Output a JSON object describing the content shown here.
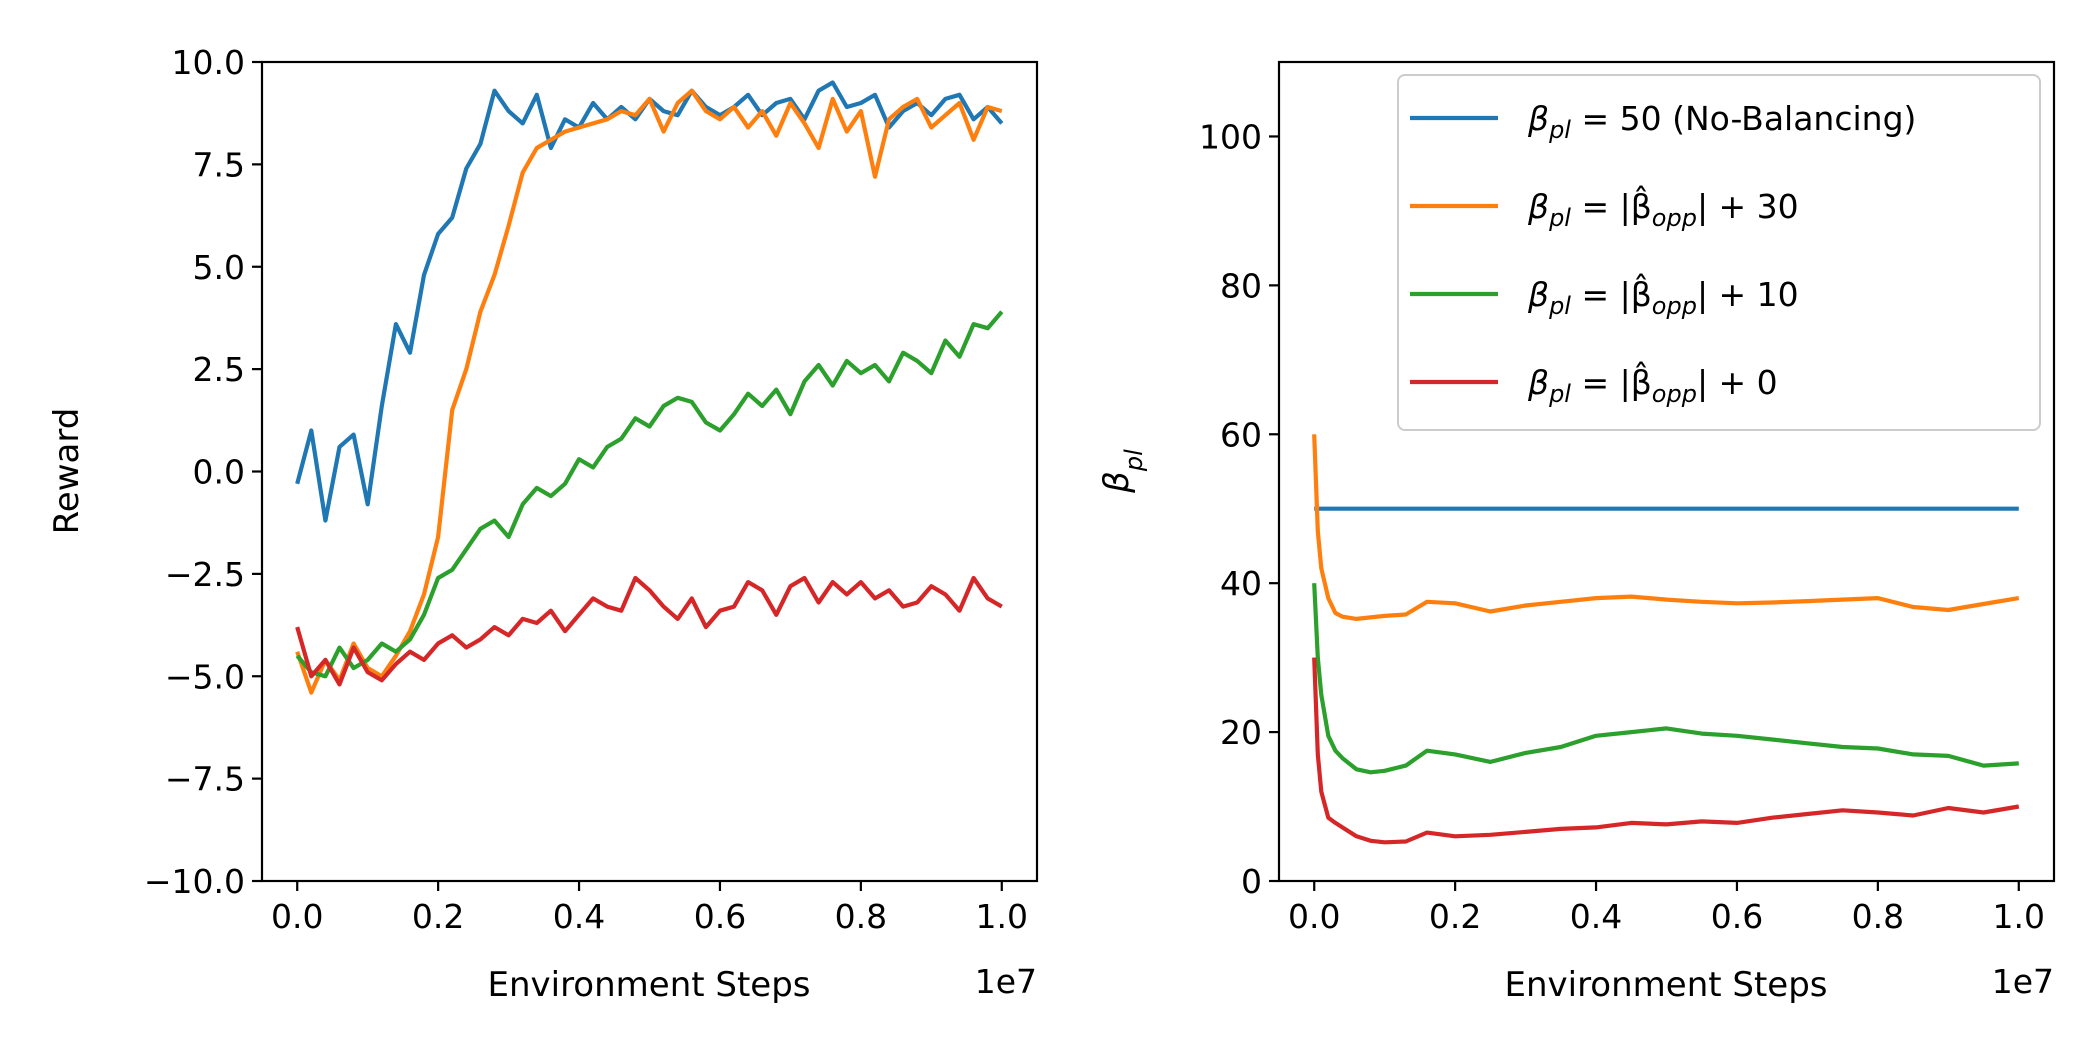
{
  "chart_data": [
    {
      "type": "line",
      "xlabel": "Environment Steps",
      "ylabel": "Reward",
      "x_offset_label": "1e7",
      "xlim": [
        -0.05,
        1.05
      ],
      "ylim": [
        -10.0,
        10.0
      ],
      "x_ticks": [
        0.0,
        0.2,
        0.4,
        0.6,
        0.8,
        1.0
      ],
      "x_tick_labels": [
        "0.0",
        "0.2",
        "0.4",
        "0.6",
        "0.8",
        "1.0"
      ],
      "y_ticks": [
        -10.0,
        -7.5,
        -5.0,
        -2.5,
        0.0,
        2.5,
        5.0,
        7.5,
        10.0
      ],
      "y_tick_labels": [
        "−10.0",
        "−7.5",
        "−5.0",
        "−2.5",
        "0.0",
        "2.5",
        "5.0",
        "7.5",
        "10.0"
      ],
      "x": [
        0.0,
        0.02,
        0.04,
        0.06,
        0.08,
        0.1,
        0.12,
        0.14,
        0.16,
        0.18,
        0.2,
        0.22,
        0.24,
        0.26,
        0.28,
        0.3,
        0.32,
        0.34,
        0.36,
        0.38,
        0.4,
        0.42,
        0.44,
        0.46,
        0.48,
        0.5,
        0.52,
        0.54,
        0.56,
        0.58,
        0.6,
        0.62,
        0.64,
        0.66,
        0.68,
        0.7,
        0.72,
        0.74,
        0.76,
        0.78,
        0.8,
        0.82,
        0.84,
        0.86,
        0.88,
        0.9,
        0.92,
        0.94,
        0.96,
        0.98,
        1.0
      ],
      "series": [
        {
          "name": "β_pl = 50 (No-Balancing)",
          "color": "#1f77b4",
          "values": [
            -0.3,
            1.0,
            -1.2,
            0.6,
            0.9,
            -0.8,
            1.6,
            3.6,
            2.9,
            4.8,
            5.8,
            6.2,
            7.4,
            8.0,
            9.3,
            8.8,
            8.5,
            9.2,
            7.9,
            8.6,
            8.4,
            9.0,
            8.6,
            8.9,
            8.6,
            9.1,
            8.8,
            8.7,
            9.3,
            8.9,
            8.7,
            8.9,
            9.2,
            8.7,
            9.0,
            9.1,
            8.6,
            9.3,
            9.5,
            8.9,
            9.0,
            9.2,
            8.4,
            8.8,
            9.0,
            8.7,
            9.1,
            9.2,
            8.6,
            8.9,
            8.5
          ]
        },
        {
          "name": "β_pl = |β̂_opp| + 30",
          "color": "#ff7f0e",
          "values": [
            -4.4,
            -5.4,
            -4.6,
            -5.1,
            -4.2,
            -4.8,
            -5.0,
            -4.5,
            -3.9,
            -3.0,
            -1.6,
            1.5,
            2.5,
            3.9,
            4.8,
            6.0,
            7.3,
            7.9,
            8.1,
            8.3,
            8.4,
            8.5,
            8.6,
            8.8,
            8.7,
            9.1,
            8.3,
            9.0,
            9.3,
            8.8,
            8.6,
            8.9,
            8.4,
            8.8,
            8.2,
            9.0,
            8.5,
            7.9,
            9.1,
            8.3,
            8.8,
            7.2,
            8.6,
            8.9,
            9.1,
            8.4,
            8.7,
            9.0,
            8.1,
            8.9,
            8.8
          ]
        },
        {
          "name": "β_pl = |β̂_opp| + 10",
          "color": "#2ca02c",
          "values": [
            -4.5,
            -4.9,
            -5.0,
            -4.3,
            -4.8,
            -4.6,
            -4.2,
            -4.4,
            -4.1,
            -3.5,
            -2.6,
            -2.4,
            -1.9,
            -1.4,
            -1.2,
            -1.6,
            -0.8,
            -0.4,
            -0.6,
            -0.3,
            0.3,
            0.1,
            0.6,
            0.8,
            1.3,
            1.1,
            1.6,
            1.8,
            1.7,
            1.2,
            1.0,
            1.4,
            1.9,
            1.6,
            2.0,
            1.4,
            2.2,
            2.6,
            2.1,
            2.7,
            2.4,
            2.6,
            2.2,
            2.9,
            2.7,
            2.4,
            3.2,
            2.8,
            3.6,
            3.5,
            3.9
          ]
        },
        {
          "name": "β_pl = |β̂_opp| + 0",
          "color": "#d62728",
          "values": [
            -3.8,
            -5.0,
            -4.6,
            -5.2,
            -4.3,
            -4.9,
            -5.1,
            -4.7,
            -4.4,
            -4.6,
            -4.2,
            -4.0,
            -4.3,
            -4.1,
            -3.8,
            -4.0,
            -3.6,
            -3.7,
            -3.4,
            -3.9,
            -3.5,
            -3.1,
            -3.3,
            -3.4,
            -2.6,
            -2.9,
            -3.3,
            -3.6,
            -3.1,
            -3.8,
            -3.4,
            -3.3,
            -2.7,
            -2.9,
            -3.5,
            -2.8,
            -2.6,
            -3.2,
            -2.7,
            -3.0,
            -2.7,
            -3.1,
            -2.9,
            -3.3,
            -3.2,
            -2.8,
            -3.0,
            -3.4,
            -2.6,
            -3.1,
            -3.3
          ]
        }
      ]
    },
    {
      "type": "line",
      "xlabel": "Environment Steps",
      "ylabel": "βpl",
      "x_offset_label": "1e7",
      "xlim": [
        -0.05,
        1.05
      ],
      "ylim": [
        0,
        110
      ],
      "x_ticks": [
        0.0,
        0.2,
        0.4,
        0.6,
        0.8,
        1.0
      ],
      "x_tick_labels": [
        "0.0",
        "0.2",
        "0.4",
        "0.6",
        "0.8",
        "1.0"
      ],
      "y_ticks": [
        0,
        20,
        40,
        60,
        80,
        100
      ],
      "y_tick_labels": [
        "0",
        "20",
        "40",
        "60",
        "80",
        "100"
      ],
      "x": [
        0.0,
        0.005,
        0.01,
        0.02,
        0.03,
        0.04,
        0.06,
        0.08,
        0.1,
        0.13,
        0.16,
        0.2,
        0.25,
        0.3,
        0.35,
        0.4,
        0.45,
        0.5,
        0.55,
        0.6,
        0.65,
        0.7,
        0.75,
        0.8,
        0.85,
        0.9,
        0.95,
        1.0
      ],
      "legend": {
        "location": "upper-right",
        "entries": [
          {
            "label_main": "β",
            "label_sub": "pl",
            "label_rest": " = 50 (No-Balancing)",
            "color": "#1f77b4"
          },
          {
            "label_main": "β",
            "label_sub": "pl",
            "label_rest": " = |β̂",
            "label_sub2": "opp",
            "label_end": "| + 30",
            "color": "#ff7f0e"
          },
          {
            "label_main": "β",
            "label_sub": "pl",
            "label_rest": " = |β̂",
            "label_sub2": "opp",
            "label_end": "| + 10",
            "color": "#2ca02c"
          },
          {
            "label_main": "β",
            "label_sub": "pl",
            "label_rest": " = |β̂",
            "label_sub2": "opp",
            "label_end": "| + 0",
            "color": "#d62728"
          }
        ]
      },
      "series": [
        {
          "name": "β_pl = 50 (No-Balancing)",
          "color": "#1f77b4",
          "values": [
            50,
            50,
            50,
            50,
            50,
            50,
            50,
            50,
            50,
            50,
            50,
            50,
            50,
            50,
            50,
            50,
            50,
            50,
            50,
            50,
            50,
            50,
            50,
            50,
            50,
            50,
            50,
            50
          ]
        },
        {
          "name": "β_pl = |β̂_opp| + 30",
          "color": "#ff7f0e",
          "values": [
            60,
            47,
            42,
            38,
            36,
            35.5,
            35.2,
            35.4,
            35.6,
            35.8,
            37.5,
            37.3,
            36.2,
            37.0,
            37.5,
            38.0,
            38.2,
            37.8,
            37.5,
            37.3,
            37.4,
            37.6,
            37.8,
            38.0,
            36.8,
            36.4,
            37.2,
            38.0
          ]
        },
        {
          "name": "β_pl = |β̂_opp| + 10",
          "color": "#2ca02c",
          "values": [
            40,
            30,
            25,
            19.5,
            17.5,
            16.5,
            15.0,
            14.6,
            14.8,
            15.5,
            17.5,
            17.0,
            16.0,
            17.2,
            18.0,
            19.5,
            20.0,
            20.5,
            19.8,
            19.5,
            19.0,
            18.5,
            18.0,
            17.8,
            17.0,
            16.8,
            15.5,
            15.8
          ]
        },
        {
          "name": "β_pl = |β̂_opp| + 0",
          "color": "#d62728",
          "values": [
            30,
            17,
            12,
            8.5,
            7.8,
            7.2,
            6.0,
            5.4,
            5.2,
            5.3,
            6.5,
            6.0,
            6.2,
            6.6,
            7.0,
            7.2,
            7.8,
            7.6,
            8.0,
            7.8,
            8.5,
            9.0,
            9.5,
            9.2,
            8.8,
            9.8,
            9.2,
            10.0
          ]
        }
      ]
    }
  ]
}
